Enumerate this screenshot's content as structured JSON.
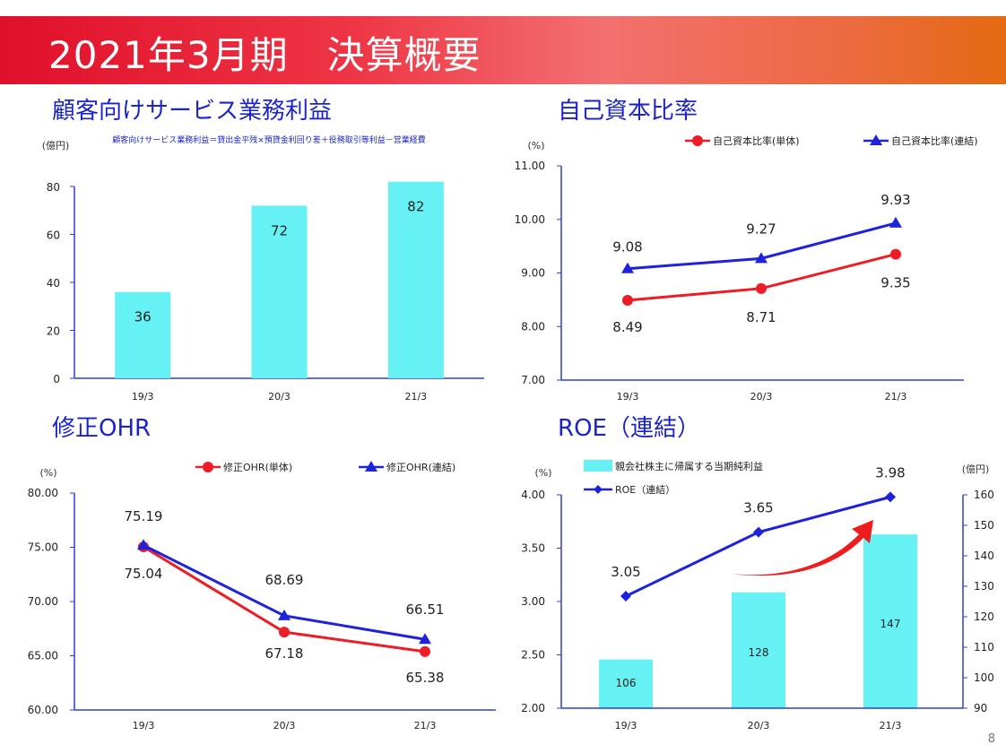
{
  "header": {
    "title": "2021年3月期　決算概要"
  },
  "page_number": "8",
  "colors": {
    "red_series": "#ee1c25",
    "blue_series": "#1e22dc",
    "bar": "#66f2f4",
    "title_blue": "#1b24c8"
  },
  "chart_data": [
    {
      "id": "c1",
      "type": "bar",
      "section_title": "顧客向けサービス業務利益",
      "unit_label": "(億円)",
      "formula_note": "顧客向けサービス業務利益＝貸出金平残×預貸金利回り差＋役務取引等利益－営業経費",
      "categories": [
        "19/3",
        "20/3",
        "21/3"
      ],
      "series": [
        {
          "values": [
            36,
            72,
            82
          ]
        }
      ],
      "ylim": [
        0,
        80
      ],
      "yticks": [
        "0",
        "20",
        "40",
        "60",
        "80"
      ],
      "grid": false
    },
    {
      "id": "c2",
      "type": "line",
      "section_title": "自己資本比率",
      "unit_label": "(%)",
      "categories": [
        "19/3",
        "20/3",
        "21/3"
      ],
      "series": [
        {
          "name": "自己資本比率(単体)",
          "values": [
            8.49,
            8.71,
            9.35
          ],
          "labels": [
            "8.49",
            "8.71",
            "9.35"
          ],
          "marker": "circle"
        },
        {
          "name": "自己資本比率(連結)",
          "values": [
            9.08,
            9.27,
            9.93
          ],
          "labels": [
            "9.08",
            "9.27",
            "9.93"
          ],
          "marker": "triangle"
        }
      ],
      "ylim": [
        7.0,
        11.0
      ],
      "yticks": [
        "7.00",
        "8.00",
        "9.00",
        "10.00",
        "11.00"
      ],
      "legend": "top-right",
      "grid": false
    },
    {
      "id": "c3",
      "type": "line",
      "section_title": "修正OHR",
      "unit_label": "(%)",
      "categories": [
        "19/3",
        "20/3",
        "21/3"
      ],
      "series": [
        {
          "name": "修正OHR(単体)",
          "values": [
            75.04,
            67.18,
            65.38
          ],
          "labels": [
            "75.04",
            "67.18",
            "65.38"
          ],
          "marker": "circle"
        },
        {
          "name": "修正OHR(連結)",
          "values": [
            75.19,
            68.69,
            66.51
          ],
          "labels": [
            "75.19",
            "68.69",
            "66.51"
          ],
          "marker": "triangle"
        }
      ],
      "ylim": [
        60.0,
        80.0
      ],
      "yticks": [
        "60.00",
        "65.00",
        "70.00",
        "75.00",
        "80.00"
      ],
      "legend": "top-right",
      "grid": false
    },
    {
      "id": "c4",
      "type": "bar+line",
      "section_title": "ROE（連結）",
      "unit_label_left": "(%)",
      "unit_label_right": "(億円)",
      "categories": [
        "19/3",
        "20/3",
        "21/3"
      ],
      "bar_series": {
        "name": "親会社株主に帰属する当期純利益",
        "values": [
          106,
          128,
          147
        ],
        "labels": [
          "106",
          "128",
          "147"
        ]
      },
      "line_series": {
        "name": "ROE（連結）",
        "values": [
          3.05,
          3.65,
          3.98
        ],
        "labels": [
          "3.05",
          "3.65",
          "3.98"
        ]
      },
      "ylim_left": [
        2.0,
        4.0
      ],
      "yticks_left": [
        "2.00",
        "2.50",
        "3.00",
        "3.50",
        "4.00"
      ],
      "ylim_right": [
        90,
        160
      ],
      "yticks_right": [
        "90",
        "100",
        "110",
        "120",
        "130",
        "140",
        "150",
        "160"
      ],
      "legend": "top-left",
      "annotation": "upward-arrow",
      "grid": false
    }
  ]
}
